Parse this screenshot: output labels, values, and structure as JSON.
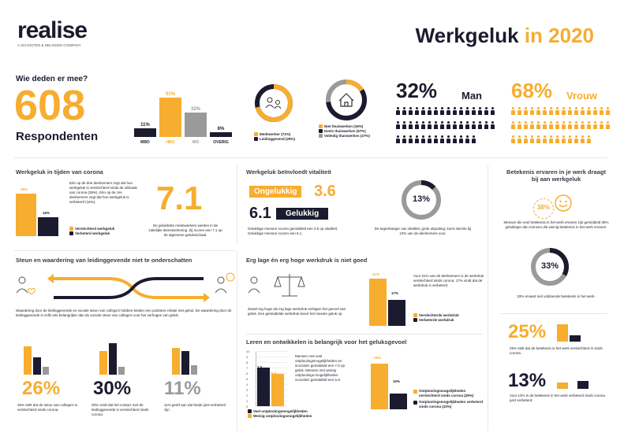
{
  "header": {
    "logo": "realise",
    "logo_sub": "A SCHOUTEN & NELISSEN COMPANY",
    "title_a": "Werkgeluk",
    "title_b": "in 2020"
  },
  "participants": {
    "heading": "Wie deden er mee?",
    "count": "608",
    "count_label": "Respondenten",
    "education": [
      {
        "label": "MBO",
        "value": 11,
        "pct": "11%"
      },
      {
        "label": "HBO",
        "value": 51,
        "pct": "51%"
      },
      {
        "label": "WO",
        "value": 32,
        "pct": "32%"
      },
      {
        "label": "OVERIG",
        "value": 6,
        "pct": "6%"
      }
    ],
    "role_legend": [
      "Medewerker (71%)",
      "Leidinggevend (29%)"
    ],
    "role_values": [
      71,
      29
    ],
    "home_legend": [
      "Niet thuiswerken (16%)",
      "Deels thuiswerken (57%)",
      "Volledig thuiswerken (27%)"
    ],
    "home_values": [
      16,
      57,
      27
    ],
    "man_pct": "32%",
    "man_label": "Man",
    "woman_pct": "68%",
    "woman_label": "Vrouw"
  },
  "corona": {
    "title": "Werkgeluk in tijden van corona",
    "bar1_pct": "36%",
    "bar2_pct": "16%",
    "bar_values": [
      36,
      16
    ],
    "text": "Eén op de drie deelnemers zegt dat hun werkgeluk is verslechterd sinds de uitbraak van corona (36%). Eén op de zes deelnemers zegt dat hun werkgeluk is verbeterd (16%).",
    "legend": [
      "Verslechterd werkgeluk",
      "Verbeterd werkgeluk"
    ],
    "score": "7.1",
    "score_text": "De gelukkiste medewerkers werken in de zakelijke dienstverlening. Zij scoren een 7.1 op de algemene geluksschaal."
  },
  "vitality": {
    "title": "Werkgeluk beïnvloedt vitaliteit",
    "unhappy_label": "Ongelukkig",
    "unhappy_score": "3.6",
    "happy_score": "6.1",
    "happy_label": "Gelukkig",
    "text": "Gelukkige mensen scoren gemiddeld een 3.6 op vitaliteit. Gelukkige mensen scoren een 6.1.",
    "donut_pct": "13%",
    "donut_value": 13,
    "donut_text": "De tegenhanger van vitaliteit, grote uitputting, komt slechts bij 13% van de deelnemers voor."
  },
  "meaning": {
    "title": "Betekenis ervaren in je werk draagt bij aan werkgeluk",
    "pct1": "38%",
    "text1": "Mensen die veel betekenis in het werk ervaren zijn gemiddeld 38% gelukkiger dan mensen die weinig betekenis in het werk ervaren.",
    "pct2": "33%",
    "donut2_value": 33,
    "text2": "33% ervaart niet voldoende betekenis in het werk.",
    "pct3": "25%",
    "text3": "25% stelt dat de betekenis in het werk verslechterd is sinds corona.",
    "pct4": "13%",
    "text4": "Voor 13% is de betekenis in het werk verbeterd sinds corona juist verbeterd."
  },
  "support": {
    "title": "Steun en waardering van leidinggevende niet te onderschatten",
    "text": "Waardering door de leidinggevende en sociale steun van collega's hebben beiden een positieve relatie met geluk. De waardering door de leidinggevende is zelfs iets belangrijker dan de sociale steun van collega's voor het verhogen van geluk.",
    "stat1": "26%",
    "stat1_text": "26% stelt dat de steun van collega's is verslechterd sinds corona.",
    "stat2": "30%",
    "stat2_text": "30% vindt dat het contact met de leidinggevende is verslechterd sinds corona.",
    "stat3": "11%",
    "stat3_text": "11% geeft aan dat beide juist verbeterd zijn."
  },
  "workload": {
    "title": "Erg lage én erg hoge werkdruk is niet goed",
    "text": "Zowel erg hoge als erg lage werkdruk verlagen het gevoel van geluk. Een gemiddelde werkdruk levert het meeste geluk op.",
    "bar1_pct": "31%",
    "bar2_pct": "17%",
    "bar_values": [
      31,
      17
    ],
    "side_text": "Voor 31% van de deelnemers is de werkdruk verslechterd sinds corona. 17% vindt dat de werkdruk is verbeterd.",
    "legend": [
      "Verslechterde werkdruk",
      "Verbeterde werkdruk"
    ]
  },
  "learning": {
    "title": "Leren en ontwikkelen is belangrijk voor het geluksgevoel",
    "axis": [
      "10",
      "9",
      "8",
      "7",
      "6",
      "5",
      "4",
      "3",
      "2",
      "1",
      "0"
    ],
    "bar1_label": "7.0",
    "bar2_label": "5.9",
    "bar_values": [
      7.0,
      5.9
    ],
    "text": "Mensen met veel ontplooiingsmogelijkheden en scoorden gemiddeld een 7.0 op geluk. Mensen met weinig ontplooiings-mogelijkheden scoorden gemiddeld een 5.9.",
    "legend": [
      "Veel ontplooiingsmogelijkheden",
      "Weinig ontplooiingsmogelijkheden"
    ],
    "bar3_pct": "29%",
    "bar4_pct": "10%",
    "bar_values2": [
      29,
      10
    ],
    "legend2": [
      "Ontplooiingsmogelijkheden verslechterd sinds corona (29%)",
      "Ontplooiingsmogelijkheden verbeterd sinds corona (10%)"
    ]
  }
}
